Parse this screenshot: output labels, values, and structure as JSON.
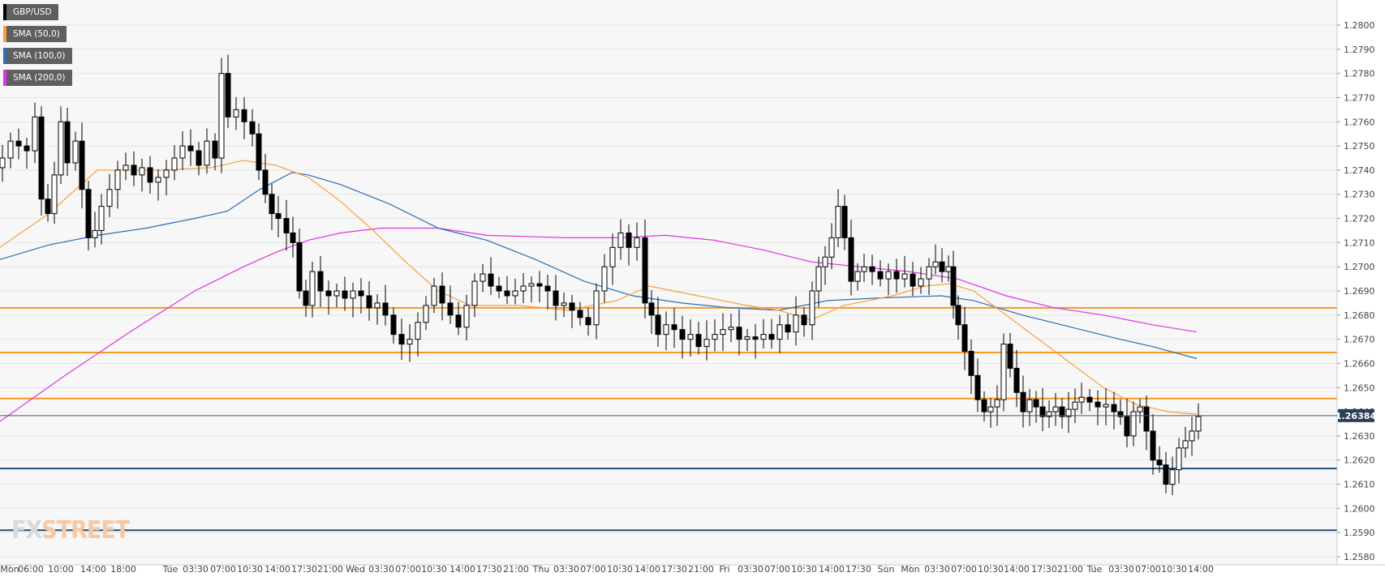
{
  "legend": {
    "items": [
      {
        "label": "GBP/USD",
        "color": "#000000"
      },
      {
        "label": "SMA (50,0)",
        "color": "#f5a142"
      },
      {
        "label": "SMA (100,0)",
        "color": "#2f6db5"
      },
      {
        "label": "SMA (200,0)",
        "color": "#e033e0"
      }
    ]
  },
  "watermark": {
    "prefix": "FX",
    "suffix": "STREET"
  },
  "chart_data": {
    "type": "candlestick",
    "symbol": "GBP/USD",
    "last_price": "1.26384",
    "ylim": [
      1.258,
      1.2805
    ],
    "y_ticks": [
      "1.2580",
      "1.2590",
      "1.2600",
      "1.2610",
      "1.2620",
      "1.2630",
      "1.2640",
      "1.2650",
      "1.2660",
      "1.2670",
      "1.2680",
      "1.2690",
      "1.2700",
      "1.2710",
      "1.2720",
      "1.2730",
      "1.2740",
      "1.2750",
      "1.2760",
      "1.2770",
      "1.2780",
      "1.2790",
      "1.2800"
    ],
    "x_ticks": [
      "Mon",
      "06:00",
      "10:00",
      "14:00",
      "18:00",
      "Tue",
      "03:30",
      "07:00",
      "10:30",
      "14:00",
      "17:30",
      "21:00",
      "Wed",
      "03:30",
      "07:00",
      "10:30",
      "14:00",
      "17:30",
      "21:00",
      "Thu",
      "03:30",
      "07:00",
      "10:30",
      "14:00",
      "17:30",
      "21:00",
      "Fri",
      "03:30",
      "07:00",
      "10:30",
      "14:00",
      "17:30",
      "Sun",
      "Mon",
      "03:30",
      "07:00",
      "10:30",
      "14:00",
      "17:30",
      "21:00",
      "Tue",
      "03:30",
      "07:00",
      "10:30",
      "14:00"
    ],
    "x_tick_pos": [
      12,
      38,
      75,
      115,
      152,
      210,
      241,
      275,
      308,
      342,
      375,
      407,
      438,
      470,
      503,
      535,
      570,
      603,
      636,
      667,
      698,
      731,
      764,
      798,
      831,
      864,
      893,
      925,
      958,
      991,
      1025,
      1058,
      1092,
      1122,
      1155,
      1188,
      1221,
      1253,
      1287,
      1319,
      1349,
      1382,
      1415,
      1447,
      1480
    ],
    "horizontal_levels": [
      {
        "value": 1.2683,
        "color": "#f59a23"
      },
      {
        "value": 1.26645,
        "color": "#f59a23"
      },
      {
        "value": 1.26455,
        "color": "#f59a23"
      },
      {
        "value": 1.26165,
        "color": "#1f4e79"
      },
      {
        "value": 1.2591,
        "color": "#1f4e79"
      }
    ],
    "series_closes": [
      {
        "x": 0,
        "c": 1.2745
      },
      {
        "x": 10,
        "c": 1.2752
      },
      {
        "x": 20,
        "c": 1.275
      },
      {
        "x": 30,
        "c": 1.2748
      },
      {
        "x": 40,
        "c": 1.2762
      },
      {
        "x": 48,
        "c": 1.2728
      },
      {
        "x": 56,
        "c": 1.2722
      },
      {
        "x": 64,
        "c": 1.2738
      },
      {
        "x": 72,
        "c": 1.276
      },
      {
        "x": 80,
        "c": 1.2743
      },
      {
        "x": 90,
        "c": 1.2752
      },
      {
        "x": 98,
        "c": 1.2732
      },
      {
        "x": 106,
        "c": 1.2712
      },
      {
        "x": 114,
        "c": 1.2715
      },
      {
        "x": 122,
        "c": 1.2725
      },
      {
        "x": 132,
        "c": 1.2732
      },
      {
        "x": 142,
        "c": 1.274
      },
      {
        "x": 152,
        "c": 1.2742
      },
      {
        "x": 162,
        "c": 1.2738
      },
      {
        "x": 172,
        "c": 1.2741
      },
      {
        "x": 182,
        "c": 1.2735
      },
      {
        "x": 192,
        "c": 1.2737
      },
      {
        "x": 202,
        "c": 1.274
      },
      {
        "x": 212,
        "c": 1.2745
      },
      {
        "x": 222,
        "c": 1.275
      },
      {
        "x": 232,
        "c": 1.2748
      },
      {
        "x": 242,
        "c": 1.2742
      },
      {
        "x": 252,
        "c": 1.2752
      },
      {
        "x": 262,
        "c": 1.2745
      },
      {
        "x": 270,
        "c": 1.278
      },
      {
        "x": 278,
        "c": 1.2762
      },
      {
        "x": 288,
        "c": 1.2765
      },
      {
        "x": 298,
        "c": 1.276
      },
      {
        "x": 308,
        "c": 1.2755
      },
      {
        "x": 316,
        "c": 1.274
      },
      {
        "x": 324,
        "c": 1.273
      },
      {
        "x": 332,
        "c": 1.2722
      },
      {
        "x": 340,
        "c": 1.272
      },
      {
        "x": 350,
        "c": 1.2714
      },
      {
        "x": 358,
        "c": 1.271
      },
      {
        "x": 366,
        "c": 1.269
      },
      {
        "x": 374,
        "c": 1.2684
      },
      {
        "x": 382,
        "c": 1.2698
      },
      {
        "x": 392,
        "c": 1.269
      },
      {
        "x": 402,
        "c": 1.2688
      },
      {
        "x": 412,
        "c": 1.269
      },
      {
        "x": 422,
        "c": 1.2687
      },
      {
        "x": 432,
        "c": 1.269
      },
      {
        "x": 442,
        "c": 1.2688
      },
      {
        "x": 452,
        "c": 1.2683
      },
      {
        "x": 462,
        "c": 1.2685
      },
      {
        "x": 472,
        "c": 1.268
      },
      {
        "x": 482,
        "c": 1.2672
      },
      {
        "x": 492,
        "c": 1.2668
      },
      {
        "x": 502,
        "c": 1.267
      },
      {
        "x": 512,
        "c": 1.2677
      },
      {
        "x": 522,
        "c": 1.2684
      },
      {
        "x": 532,
        "c": 1.2692
      },
      {
        "x": 542,
        "c": 1.2685
      },
      {
        "x": 552,
        "c": 1.268
      },
      {
        "x": 562,
        "c": 1.2675
      },
      {
        "x": 572,
        "c": 1.2684
      },
      {
        "x": 582,
        "c": 1.2694
      },
      {
        "x": 592,
        "c": 1.2697
      },
      {
        "x": 602,
        "c": 1.2692
      },
      {
        "x": 612,
        "c": 1.269
      },
      {
        "x": 622,
        "c": 1.2688
      },
      {
        "x": 632,
        "c": 1.269
      },
      {
        "x": 642,
        "c": 1.2692
      },
      {
        "x": 652,
        "c": 1.2693
      },
      {
        "x": 662,
        "c": 1.2692
      },
      {
        "x": 672,
        "c": 1.269
      },
      {
        "x": 682,
        "c": 1.2684
      },
      {
        "x": 692,
        "c": 1.2685
      },
      {
        "x": 702,
        "c": 1.2682
      },
      {
        "x": 712,
        "c": 1.2679
      },
      {
        "x": 722,
        "c": 1.2676
      },
      {
        "x": 732,
        "c": 1.269
      },
      {
        "x": 742,
        "c": 1.27
      },
      {
        "x": 752,
        "c": 1.2708
      },
      {
        "x": 762,
        "c": 1.2714
      },
      {
        "x": 772,
        "c": 1.2708
      },
      {
        "x": 782,
        "c": 1.2712
      },
      {
        "x": 792,
        "c": 1.2685
      },
      {
        "x": 800,
        "c": 1.268
      },
      {
        "x": 808,
        "c": 1.2672
      },
      {
        "x": 818,
        "c": 1.2676
      },
      {
        "x": 828,
        "c": 1.2674
      },
      {
        "x": 838,
        "c": 1.267
      },
      {
        "x": 848,
        "c": 1.2672
      },
      {
        "x": 858,
        "c": 1.2667
      },
      {
        "x": 868,
        "c": 1.267
      },
      {
        "x": 878,
        "c": 1.2672
      },
      {
        "x": 888,
        "c": 1.2674
      },
      {
        "x": 898,
        "c": 1.2675
      },
      {
        "x": 908,
        "c": 1.267
      },
      {
        "x": 918,
        "c": 1.2671
      },
      {
        "x": 928,
        "c": 1.267
      },
      {
        "x": 938,
        "c": 1.2672
      },
      {
        "x": 948,
        "c": 1.267
      },
      {
        "x": 958,
        "c": 1.2676
      },
      {
        "x": 968,
        "c": 1.2673
      },
      {
        "x": 978,
        "c": 1.268
      },
      {
        "x": 988,
        "c": 1.2676
      },
      {
        "x": 998,
        "c": 1.269
      },
      {
        "x": 1006,
        "c": 1.27
      },
      {
        "x": 1014,
        "c": 1.2704
      },
      {
        "x": 1022,
        "c": 1.2712
      },
      {
        "x": 1030,
        "c": 1.2725
      },
      {
        "x": 1038,
        "c": 1.2712
      },
      {
        "x": 1046,
        "c": 1.2694
      },
      {
        "x": 1054,
        "c": 1.2698
      },
      {
        "x": 1062,
        "c": 1.27
      },
      {
        "x": 1072,
        "c": 1.2698
      },
      {
        "x": 1082,
        "c": 1.2695
      },
      {
        "x": 1092,
        "c": 1.2698
      },
      {
        "x": 1102,
        "c": 1.2695
      },
      {
        "x": 1112,
        "c": 1.2697
      },
      {
        "x": 1122,
        "c": 1.2692
      },
      {
        "x": 1132,
        "c": 1.2695
      },
      {
        "x": 1142,
        "c": 1.27
      },
      {
        "x": 1150,
        "c": 1.2702
      },
      {
        "x": 1158,
        "c": 1.2698
      },
      {
        "x": 1166,
        "c": 1.27
      },
      {
        "x": 1172,
        "c": 1.2684
      },
      {
        "x": 1178,
        "c": 1.2676
      },
      {
        "x": 1186,
        "c": 1.2665
      },
      {
        "x": 1194,
        "c": 1.2655
      },
      {
        "x": 1202,
        "c": 1.2645
      },
      {
        "x": 1210,
        "c": 1.264
      },
      {
        "x": 1218,
        "c": 1.2642
      },
      {
        "x": 1226,
        "c": 1.2645
      },
      {
        "x": 1234,
        "c": 1.2668
      },
      {
        "x": 1242,
        "c": 1.2658
      },
      {
        "x": 1250,
        "c": 1.2648
      },
      {
        "x": 1258,
        "c": 1.264
      },
      {
        "x": 1266,
        "c": 1.2645
      },
      {
        "x": 1274,
        "c": 1.2642
      },
      {
        "x": 1282,
        "c": 1.2638
      },
      {
        "x": 1290,
        "c": 1.264
      },
      {
        "x": 1298,
        "c": 1.2642
      },
      {
        "x": 1306,
        "c": 1.2638
      },
      {
        "x": 1314,
        "c": 1.2641
      },
      {
        "x": 1322,
        "c": 1.2644
      },
      {
        "x": 1330,
        "c": 1.2646
      },
      {
        "x": 1340,
        "c": 1.2644
      },
      {
        "x": 1350,
        "c": 1.2642
      },
      {
        "x": 1360,
        "c": 1.2643
      },
      {
        "x": 1370,
        "c": 1.264
      },
      {
        "x": 1378,
        "c": 1.2638
      },
      {
        "x": 1386,
        "c": 1.263
      },
      {
        "x": 1394,
        "c": 1.264
      },
      {
        "x": 1402,
        "c": 1.2642
      },
      {
        "x": 1410,
        "c": 1.2632
      },
      {
        "x": 1418,
        "c": 1.262
      },
      {
        "x": 1426,
        "c": 1.2618
      },
      {
        "x": 1434,
        "c": 1.261
      },
      {
        "x": 1442,
        "c": 1.2616
      },
      {
        "x": 1450,
        "c": 1.2625
      },
      {
        "x": 1458,
        "c": 1.2628
      },
      {
        "x": 1466,
        "c": 1.2632
      },
      {
        "x": 1474,
        "c": 1.2638
      }
    ],
    "sma50": [
      [
        0,
        1.2708
      ],
      [
        60,
        1.2722
      ],
      [
        120,
        1.274
      ],
      [
        200,
        1.274
      ],
      [
        260,
        1.2741
      ],
      [
        300,
        1.2744
      ],
      [
        340,
        1.2742
      ],
      [
        380,
        1.2737
      ],
      [
        420,
        1.2727
      ],
      [
        460,
        1.2715
      ],
      [
        500,
        1.2702
      ],
      [
        540,
        1.269
      ],
      [
        580,
        1.2684
      ],
      [
        640,
        1.2684
      ],
      [
        700,
        1.2682
      ],
      [
        760,
        1.2686
      ],
      [
        800,
        1.2692
      ],
      [
        860,
        1.2688
      ],
      [
        920,
        1.2684
      ],
      [
        960,
        1.2682
      ],
      [
        1000,
        1.2678
      ],
      [
        1040,
        1.2684
      ],
      [
        1100,
        1.2688
      ],
      [
        1140,
        1.2692
      ],
      [
        1170,
        1.2693
      ],
      [
        1200,
        1.269
      ],
      [
        1240,
        1.268
      ],
      [
        1280,
        1.267
      ],
      [
        1320,
        1.266
      ],
      [
        1360,
        1.265
      ],
      [
        1400,
        1.2643
      ],
      [
        1440,
        1.264
      ],
      [
        1475,
        1.2639
      ]
    ],
    "sma100": [
      [
        0,
        1.2703
      ],
      [
        60,
        1.2709
      ],
      [
        120,
        1.2713
      ],
      [
        180,
        1.2716
      ],
      [
        240,
        1.272
      ],
      [
        280,
        1.2723
      ],
      [
        320,
        1.2732
      ],
      [
        360,
        1.2739
      ],
      [
        380,
        1.2738
      ],
      [
        420,
        1.2734
      ],
      [
        480,
        1.2726
      ],
      [
        540,
        1.2716
      ],
      [
        600,
        1.2711
      ],
      [
        660,
        1.2703
      ],
      [
        720,
        1.2694
      ],
      [
        780,
        1.2688
      ],
      [
        840,
        1.2685
      ],
      [
        900,
        1.2683
      ],
      [
        960,
        1.2682
      ],
      [
        1020,
        1.2686
      ],
      [
        1080,
        1.2687
      ],
      [
        1160,
        1.2688
      ],
      [
        1200,
        1.2686
      ],
      [
        1260,
        1.268
      ],
      [
        1320,
        1.2675
      ],
      [
        1380,
        1.267
      ],
      [
        1420,
        1.2667
      ],
      [
        1475,
        1.2662
      ]
    ],
    "sma200": [
      [
        0,
        1.2636
      ],
      [
        80,
        1.2655
      ],
      [
        160,
        1.2673
      ],
      [
        240,
        1.269
      ],
      [
        300,
        1.27
      ],
      [
        340,
        1.2706
      ],
      [
        380,
        1.2711
      ],
      [
        420,
        1.2714
      ],
      [
        470,
        1.2716
      ],
      [
        540,
        1.2716
      ],
      [
        600,
        1.2713
      ],
      [
        700,
        1.2712
      ],
      [
        760,
        1.2712
      ],
      [
        820,
        1.2713
      ],
      [
        880,
        1.2711
      ],
      [
        940,
        1.2707
      ],
      [
        1000,
        1.2702
      ],
      [
        1060,
        1.27
      ],
      [
        1120,
        1.2698
      ],
      [
        1180,
        1.2695
      ],
      [
        1240,
        1.2688
      ],
      [
        1300,
        1.2683
      ],
      [
        1360,
        1.268
      ],
      [
        1420,
        1.2676
      ],
      [
        1475,
        1.2673
      ]
    ]
  }
}
